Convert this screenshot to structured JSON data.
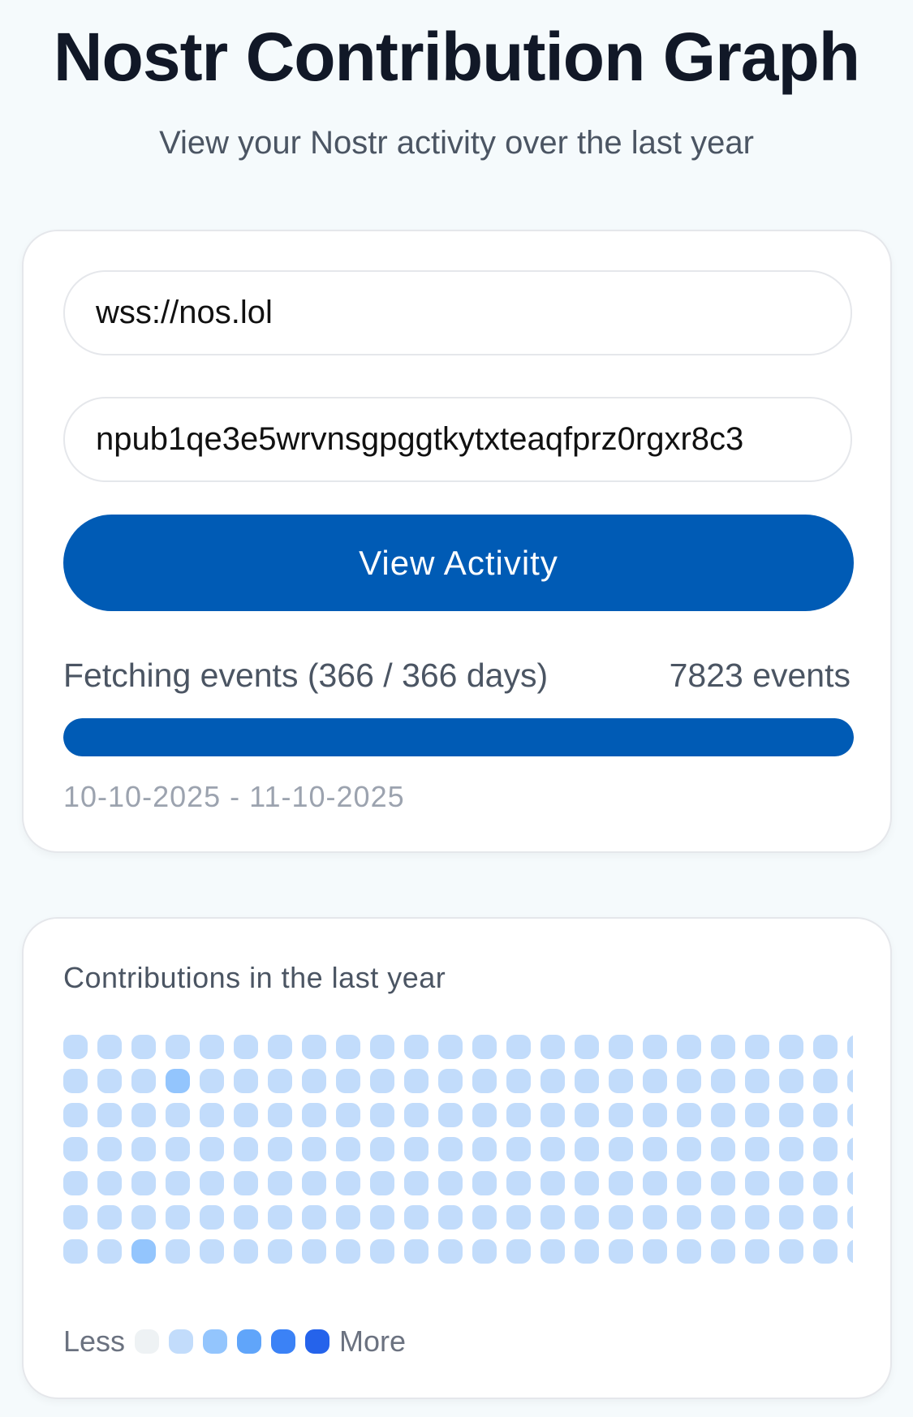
{
  "header": {
    "title": "Nostr Contribution Graph",
    "subtitle": "View your Nostr activity over the last year"
  },
  "form": {
    "relay_value": "wss://nos.lol",
    "npub_value": "npub1qe3e5wrvnsgpggtkytxteaqfprz0rgxr8c3",
    "submit_label": "View Activity",
    "status_text": "Fetching events (366 / 366 days)",
    "event_count": "7823 events",
    "progress_percent": 100,
    "date_range": "10-10-2025 - 11-10-2025"
  },
  "graph": {
    "heading": "Contributions in the last year",
    "legend_less": "Less",
    "legend_more": "More",
    "level_colors": [
      "#eef2f4",
      "#c2dcfb",
      "#93c5fd",
      "#60a5fa",
      "#3b82f6",
      "#2563eb"
    ],
    "highlighted": [
      {
        "week": 3,
        "day": 1,
        "level": 2
      },
      {
        "week": 2,
        "day": 6,
        "level": 2
      }
    ],
    "default_level": 1,
    "visible_weeks": 24
  },
  "colors": {
    "accent": "#005bb5"
  }
}
